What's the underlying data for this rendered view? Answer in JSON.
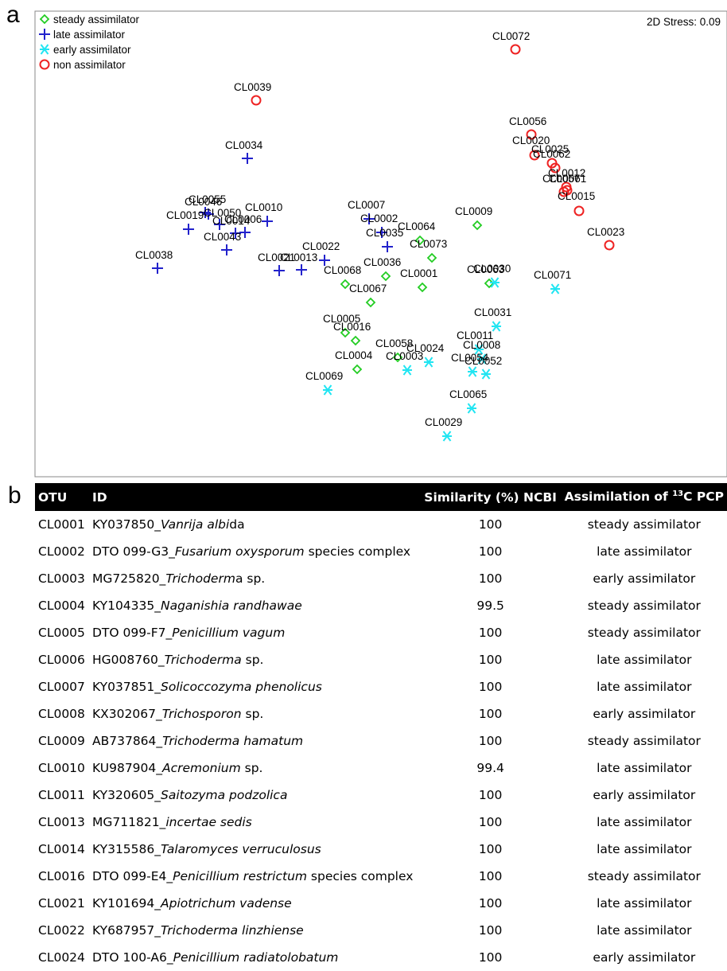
{
  "panels": {
    "a": "a",
    "b": "b"
  },
  "chart_data": {
    "type": "scatter",
    "stress_label": "2D Stress: 0.09",
    "legend_position": "top-left",
    "xlim": [
      0,
      870
    ],
    "ylim": [
      0,
      585
    ],
    "series": [
      {
        "name": "steady assimilator",
        "marker": "diamond",
        "color": "#22cc22",
        "points": [
          {
            "id": "CL0009",
            "x": 556,
            "y": 269
          },
          {
            "id": "CL0064",
            "x": 484,
            "y": 288
          },
          {
            "id": "CL0073",
            "x": 499,
            "y": 310
          },
          {
            "id": "CL0036",
            "x": 441,
            "y": 333
          },
          {
            "id": "CL0068",
            "x": 390,
            "y": 343
          },
          {
            "id": "CL0001",
            "x": 487,
            "y": 347
          },
          {
            "id": "CL0063",
            "x": 571,
            "y": 342
          },
          {
            "id": "CL0067",
            "x": 422,
            "y": 366
          },
          {
            "id": "CL0005",
            "x": 390,
            "y": 404
          },
          {
            "id": "CL0016",
            "x": 403,
            "y": 414
          },
          {
            "id": "CL0058",
            "x": 456,
            "y": 435
          },
          {
            "id": "CL0004",
            "x": 405,
            "y": 450
          }
        ]
      },
      {
        "name": "late assimilator",
        "marker": "plus",
        "color": "#2222cc",
        "points": [
          {
            "id": "CL0034",
            "x": 267,
            "y": 185
          },
          {
            "id": "CL0046",
            "x": 214,
            "y": 253
          },
          {
            "id": "CL0055",
            "x": 218,
            "y": 255
          },
          {
            "id": "CL0050",
            "x": 232,
            "y": 268
          },
          {
            "id": "CL0010",
            "x": 292,
            "y": 264
          },
          {
            "id": "CL0006",
            "x": 264,
            "y": 278
          },
          {
            "id": "CL0014",
            "x": 252,
            "y": 279
          },
          {
            "id": "CL0019",
            "x": 193,
            "y": 274
          },
          {
            "id": "CL0043",
            "x": 241,
            "y": 300
          },
          {
            "id": "CL0038",
            "x": 154,
            "y": 323
          },
          {
            "id": "CL0022",
            "x": 364,
            "y": 313
          },
          {
            "id": "CL0021",
            "x": 307,
            "y": 326
          },
          {
            "id": "CL0013",
            "x": 335,
            "y": 325
          },
          {
            "id": "CL0007",
            "x": 420,
            "y": 261
          },
          {
            "id": "CL0002",
            "x": 436,
            "y": 278
          },
          {
            "id": "CL0035",
            "x": 443,
            "y": 296
          }
        ]
      },
      {
        "name": "early assimilator",
        "marker": "asterisk",
        "color": "#22e5f2",
        "points": [
          {
            "id": "CL0030",
            "x": 578,
            "y": 341
          },
          {
            "id": "CL0071",
            "x": 654,
            "y": 349
          },
          {
            "id": "CL0031",
            "x": 580,
            "y": 396
          },
          {
            "id": "CL0011",
            "x": 558,
            "y": 425
          },
          {
            "id": "CL0008",
            "x": 562,
            "y": 437
          },
          {
            "id": "CL0024",
            "x": 495,
            "y": 441
          },
          {
            "id": "CL0003",
            "x": 468,
            "y": 451
          },
          {
            "id": "CL0054",
            "x": 550,
            "y": 453
          },
          {
            "id": "CL0052",
            "x": 567,
            "y": 456
          },
          {
            "id": "CL0069",
            "x": 368,
            "y": 476
          },
          {
            "id": "CL0065",
            "x": 549,
            "y": 499
          },
          {
            "id": "CL0029",
            "x": 518,
            "y": 534
          }
        ]
      },
      {
        "name": "non assimilator",
        "marker": "circle",
        "color": "#ee2222",
        "points": [
          {
            "id": "CL0072",
            "x": 604,
            "y": 48
          },
          {
            "id": "CL0039",
            "x": 278,
            "y": 112
          },
          {
            "id": "CL0056",
            "x": 624,
            "y": 155
          },
          {
            "id": "CL0020",
            "x": 628,
            "y": 181
          },
          {
            "id": "CL0025",
            "x": 650,
            "y": 191
          },
          {
            "id": "CL0062",
            "x": 654,
            "y": 197
          },
          {
            "id": "CL0012",
            "x": 668,
            "y": 221
          },
          {
            "id": "CL0057",
            "x": 665,
            "y": 227
          },
          {
            "id": "CL0061",
            "x": 669,
            "y": 225
          },
          {
            "id": "CL0015",
            "x": 684,
            "y": 251
          },
          {
            "id": "CL0023",
            "x": 722,
            "y": 294
          }
        ]
      }
    ],
    "labels": [
      {
        "t": "CL0072",
        "x": 575,
        "y": 31
      },
      {
        "t": "CL0039",
        "x": 250,
        "y": 95
      },
      {
        "t": "CL0056",
        "x": 596,
        "y": 138
      },
      {
        "t": "CL0020",
        "x": 600,
        "y": 162
      },
      {
        "t": "CL0025",
        "x": 624,
        "y": 173
      },
      {
        "t": "CL0062",
        "x": 626,
        "y": 179
      },
      {
        "t": "CL0012",
        "x": 645,
        "y": 203
      },
      {
        "t": "CL0057",
        "x": 638,
        "y": 210
      },
      {
        "t": "CL0061",
        "x": 646,
        "y": 210
      },
      {
        "t": "CL0015",
        "x": 657,
        "y": 232
      },
      {
        "t": "CL0023",
        "x": 694,
        "y": 277
      },
      {
        "t": "CL0034",
        "x": 239,
        "y": 168
      },
      {
        "t": "CL0046",
        "x": 188,
        "y": 239
      },
      {
        "t": "CL0055",
        "x": 193,
        "y": 236
      },
      {
        "t": "CL0010",
        "x": 264,
        "y": 246
      },
      {
        "t": "CL0019",
        "x": 165,
        "y": 256
      },
      {
        "t": "CL0050",
        "x": 212,
        "y": 253
      },
      {
        "t": "CL0014",
        "x": 223,
        "y": 263
      },
      {
        "t": "CL0006",
        "x": 238,
        "y": 261
      },
      {
        "t": "CL0043",
        "x": 212,
        "y": 283
      },
      {
        "t": "CL0038",
        "x": 126,
        "y": 306
      },
      {
        "t": "CL0022",
        "x": 336,
        "y": 295
      },
      {
        "t": "CL0021",
        "x": 280,
        "y": 309
      },
      {
        "t": "CL0013",
        "x": 308,
        "y": 309
      },
      {
        "t": "CL0007",
        "x": 393,
        "y": 243
      },
      {
        "t": "CL0002",
        "x": 409,
        "y": 260
      },
      {
        "t": "CL0035",
        "x": 416,
        "y": 278
      },
      {
        "t": "CL0009",
        "x": 528,
        "y": 251
      },
      {
        "t": "CL0064",
        "x": 456,
        "y": 270
      },
      {
        "t": "CL0073",
        "x": 471,
        "y": 292
      },
      {
        "t": "CL0036",
        "x": 413,
        "y": 315
      },
      {
        "t": "CL0068",
        "x": 363,
        "y": 325
      },
      {
        "t": "CL0001",
        "x": 459,
        "y": 329
      },
      {
        "t": "CL0063",
        "x": 543,
        "y": 324
      },
      {
        "t": "CL0030",
        "x": 551,
        "y": 323
      },
      {
        "t": "CL0067",
        "x": 395,
        "y": 348
      },
      {
        "t": "CL0071",
        "x": 627,
        "y": 331
      },
      {
        "t": "CL0031",
        "x": 552,
        "y": 378
      },
      {
        "t": "CL0005",
        "x": 362,
        "y": 386
      },
      {
        "t": "CL0016",
        "x": 375,
        "y": 396
      },
      {
        "t": "CL0011",
        "x": 530,
        "y": 407
      },
      {
        "t": "CL0008",
        "x": 538,
        "y": 419
      },
      {
        "t": "CL0058",
        "x": 428,
        "y": 417
      },
      {
        "t": "CL0024",
        "x": 467,
        "y": 423
      },
      {
        "t": "CL0003",
        "x": 441,
        "y": 433
      },
      {
        "t": "CL0054",
        "x": 523,
        "y": 435
      },
      {
        "t": "CL0052",
        "x": 540,
        "y": 439
      },
      {
        "t": "CL0004",
        "x": 377,
        "y": 432
      },
      {
        "t": "CL0069",
        "x": 340,
        "y": 458
      },
      {
        "t": "CL0065",
        "x": 521,
        "y": 481
      },
      {
        "t": "CL0029",
        "x": 490,
        "y": 516
      }
    ]
  },
  "table": {
    "headers": {
      "otu": "OTU",
      "id": "ID",
      "similarity": "Similarity (%) NCBI",
      "assim_pre": "Assimilation of ",
      "assim_sup": "13",
      "assim_post": "C PCP"
    },
    "rows": [
      {
        "otu": "CL0001",
        "acc": "KY037850_",
        "sp": "Vanrija albi",
        "rest": "da",
        "sim": "100",
        "ass": "steady assimilator"
      },
      {
        "otu": "CL0002",
        "acc": "DTO 099-G3_",
        "sp": "Fusarium oxysporum",
        "rest": " species complex",
        "sim": "100",
        "ass": "late assimilator"
      },
      {
        "otu": "CL0003",
        "acc": "MG725820_",
        "sp": "Trichoderm",
        "rest": "a sp.",
        "sim": "100",
        "ass": "early assimilator"
      },
      {
        "otu": "CL0004",
        "acc": "KY104335_",
        "sp": "Naganishia randhawae",
        "rest": "",
        "sim": "99.5",
        "ass": "steady assimilator"
      },
      {
        "otu": "CL0005",
        "acc": "DTO 099-F7_",
        "sp": "Penicillium vagum",
        "rest": "",
        "sim": "100",
        "ass": "steady assimilator"
      },
      {
        "otu": "CL0006",
        "acc": "HG008760_",
        "sp": "Trichoderma",
        "rest": " sp.",
        "sim": "100",
        "ass": "late assimilator"
      },
      {
        "otu": "CL0007",
        "acc": "KY037851_",
        "sp": "Solicoccozyma phenolicus",
        "rest": "",
        "sim": "100",
        "ass": "late assimilator"
      },
      {
        "otu": "CL0008",
        "acc": "KX302067_",
        "sp": "Trichosporon",
        "rest": " sp.",
        "sim": "100",
        "ass": "early assimilator"
      },
      {
        "otu": "CL0009",
        "acc": "AB737864_",
        "sp": "Trichoderma hamatum",
        "rest": "",
        "sim": "100",
        "ass": "steady assimilator"
      },
      {
        "otu": "CL0010",
        "acc": "KU987904_",
        "sp": "Acremonium",
        "rest": " sp.",
        "sim": "99.4",
        "ass": "late assimilator"
      },
      {
        "otu": "CL0011",
        "acc": "KY320605_",
        "sp": "Saitozyma podzolica",
        "rest": "",
        "sim": "100",
        "ass": "early assimilator"
      },
      {
        "otu": "CL0013",
        "acc": "MG711821_",
        "sp": "incertae sedis",
        "rest": "",
        "sim": "100",
        "ass": "late assimilator"
      },
      {
        "otu": "CL0014",
        "acc": "KY315586_",
        "sp": "Talaromyces verruculosus",
        "rest": "",
        "sim": "100",
        "ass": "late assimilator"
      },
      {
        "otu": "CL0016",
        "acc": "DTO 099-E4_",
        "sp": "Penicillium restrictum",
        "rest": " species complex",
        "sim": "100",
        "ass": "steady assimilator"
      },
      {
        "otu": "CL0021",
        "acc": "KY101694_",
        "sp": "Apiotrichum vadense",
        "rest": "",
        "sim": "100",
        "ass": "late assimilator"
      },
      {
        "otu": "CL0022",
        "acc": "KY687957_",
        "sp": "Trichoderma linzhiense",
        "rest": "",
        "sim": "100",
        "ass": "late assimilator"
      },
      {
        "otu": "CL0024",
        "acc": "DTO 100-A6_",
        "sp": "Penicillium radiatolobatum",
        "rest": "",
        "sim": "100",
        "ass": "early assimilator"
      }
    ]
  }
}
